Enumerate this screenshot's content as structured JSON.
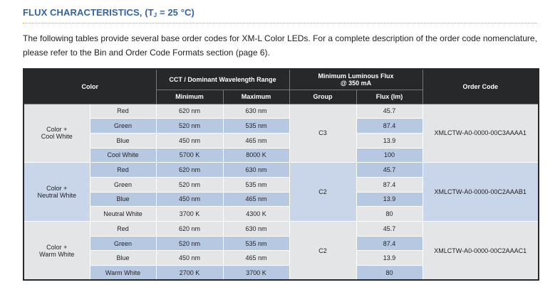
{
  "title": {
    "main": "FLUX CHARACTERISTICS, (T",
    "sub": "J",
    "rest": " = 25 °C)"
  },
  "intro": "The following tables provide several base order codes for XM-L Color LEDs. For a complete description of the order code nomenclature, please refer to the Bin and Order Code Formats section (page 6).",
  "table": {
    "headers": {
      "color": "Color",
      "cct": "CCT / Dominant Wavelength Range",
      "flux_title": "Minimum Luminous Flux",
      "flux_sub": "@ 350 mA",
      "order_code": "Order Code",
      "minimum": "Minimum",
      "maximum": "Maximum",
      "group": "Group",
      "flux_lm": "Flux (lm)"
    },
    "groups": [
      {
        "name_line1": "Color +",
        "name_line2": "Cool White",
        "group": "C3",
        "order_code": "XMLCTW-A0-0000-00C3AAAA1",
        "rows": [
          {
            "color": "Red",
            "min": "620 nm",
            "max": "630 nm",
            "flux": "45.7"
          },
          {
            "color": "Green",
            "min": "520 nm",
            "max": "535 nm",
            "flux": "87.4"
          },
          {
            "color": "Blue",
            "min": "450 nm",
            "max": "465 nm",
            "flux": "13.9"
          },
          {
            "color": "Cool White",
            "min": "5700 K",
            "max": "8000 K",
            "flux": "100"
          }
        ]
      },
      {
        "name_line1": "Color +",
        "name_line2": "Neutral White",
        "group": "C2",
        "order_code": "XMLCTW-A0-0000-00C2AAAB1",
        "rows": [
          {
            "color": "Red",
            "min": "620 nm",
            "max": "630 nm",
            "flux": "45.7"
          },
          {
            "color": "Green",
            "min": "520 nm",
            "max": "535 nm",
            "flux": "87.4"
          },
          {
            "color": "Blue",
            "min": "450 nm",
            "max": "465 nm",
            "flux": "13.9"
          },
          {
            "color": "Neutral White",
            "min": "3700 K",
            "max": "4300 K",
            "flux": "80"
          }
        ]
      },
      {
        "name_line1": "Color +",
        "name_line2": "Warm White",
        "group": "C2",
        "order_code": "XMLCTW-A0-0000-00C2AAAC1",
        "rows": [
          {
            "color": "Red",
            "min": "620 nm",
            "max": "630 nm",
            "flux": "45.7"
          },
          {
            "color": "Green",
            "min": "520 nm",
            "max": "535 nm",
            "flux": "87.4"
          },
          {
            "color": "Blue",
            "min": "450 nm",
            "max": "465 nm",
            "flux": "13.9"
          },
          {
            "color": "Warm White",
            "min": "2700 K",
            "max": "3700 K",
            "flux": "80"
          }
        ]
      }
    ]
  }
}
